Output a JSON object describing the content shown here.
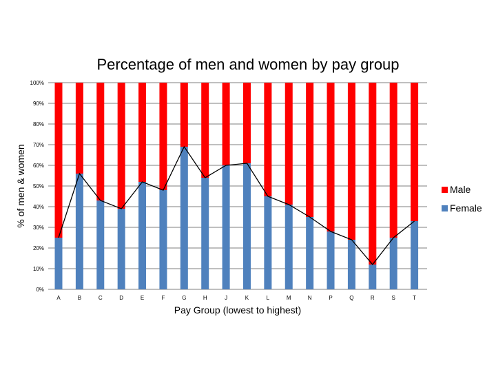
{
  "chart_data": {
    "type": "bar",
    "stacked": true,
    "title": "Percentage of men and women by pay group",
    "xlabel": "Pay Group (lowest to highest)",
    "ylabel": "% of men & women",
    "ylim": [
      0,
      100
    ],
    "yticks": [
      "0%",
      "10%",
      "20%",
      "30%",
      "40%",
      "50%",
      "60%",
      "70%",
      "80%",
      "90%",
      "100%"
    ],
    "grid": true,
    "legend": "right",
    "categories": [
      "A",
      "B",
      "C",
      "D",
      "E",
      "F",
      "G",
      "H",
      "J",
      "K",
      "L",
      "M",
      "N",
      "P",
      "Q",
      "R",
      "S",
      "T"
    ],
    "series": [
      {
        "name": "Female",
        "color": "#4f81bd",
        "values": [
          25,
          56,
          43,
          39,
          52,
          48,
          69,
          54,
          60,
          61,
          45,
          41,
          35,
          28,
          24,
          12,
          25,
          33
        ]
      },
      {
        "name": "Male",
        "color": "#ff0000",
        "values": [
          75,
          44,
          57,
          61,
          48,
          52,
          31,
          46,
          40,
          39,
          55,
          59,
          65,
          72,
          76,
          88,
          75,
          67
        ]
      }
    ],
    "trend_line": {
      "series": "Female",
      "color": "#000000"
    }
  }
}
